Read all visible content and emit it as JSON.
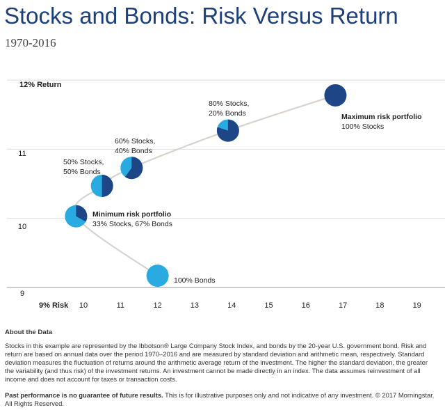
{
  "title": "Stocks and Bonds: Risk Versus Return",
  "subtitle": "1970-2016",
  "chart_data": {
    "type": "scatter",
    "xlabel": "9% Risk",
    "ylabel": "12% Return",
    "x_ticks": [
      "10",
      "11",
      "12",
      "13",
      "14",
      "15",
      "16",
      "17",
      "18",
      "19"
    ],
    "y_ticks": [
      "11",
      "10",
      "9"
    ],
    "xlim": [
      9,
      19.5
    ],
    "ylim": [
      9,
      12
    ],
    "grid": "horizontal",
    "points": [
      {
        "x": 12.0,
        "y": 9.17,
        "stocks_pct": 0,
        "label": "100% Bonds"
      },
      {
        "x": 9.8,
        "y": 10.03,
        "stocks_pct": 33,
        "label": "Minimum risk portfolio",
        "sublabel": "33% Stocks, 67% Bonds"
      },
      {
        "x": 10.5,
        "y": 10.47,
        "stocks_pct": 50,
        "label": "50% Stocks,",
        "sublabel": "50% Bonds"
      },
      {
        "x": 11.3,
        "y": 10.73,
        "stocks_pct": 60,
        "label": "60% Stocks,",
        "sublabel": "40% Bonds"
      },
      {
        "x": 13.9,
        "y": 11.27,
        "stocks_pct": 80,
        "label": "80% Stocks,",
        "sublabel": "20% Bonds"
      },
      {
        "x": 16.8,
        "y": 11.78,
        "stocks_pct": 100,
        "label": "Maximum risk portfolio",
        "sublabel": "100% Stocks"
      }
    ],
    "colors": {
      "stocks": "#1e4585",
      "bonds": "#29abe2",
      "curve": "#d8d3cd",
      "grid": "#dddddd"
    }
  },
  "about": {
    "heading": "About the Data",
    "text": "Stocks in this example are represented by the Ibbotson® Large Company Stock Index, and bonds by the 20-year U.S. government bond. Risk and return are based on annual data over the period 1970–2016 and are measured by standard deviation and arithmetic mean, respectively. Standard deviation measures the fluctuation of returns around the arithmetic average return of the investment. The higher the standard deviation, the greater the variability (and thus risk) of the investment returns. An investment cannot be made directly in an index. The data assumes reinvestment of all income and does not account for taxes or transaction costs."
  },
  "disclaimer": {
    "bold": "Past performance is no guarantee of future results.",
    "text": " This is for illustrative purposes only and not indicative of any investment. © 2017 Morningstar. All Rights Reserved."
  }
}
